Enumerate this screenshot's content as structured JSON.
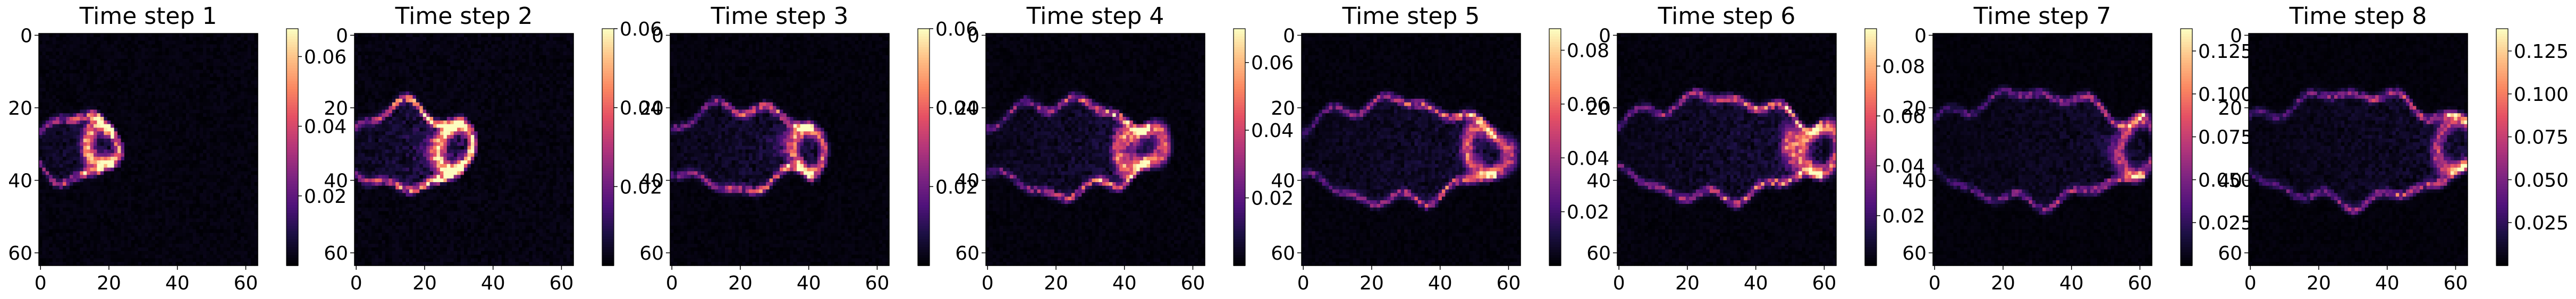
{
  "figure": {
    "colormap": "magma",
    "grid_size": 64
  },
  "chart_data": [
    {
      "type": "heatmap",
      "title": "Time step 1",
      "xlim": [
        0,
        63
      ],
      "ylim": [
        63,
        0
      ],
      "x_ticks": [
        "0",
        "20",
        "40",
        "60"
      ],
      "y_ticks": [
        "0",
        "20",
        "40",
        "60"
      ],
      "colorbar": {
        "min": 0.0,
        "max": 0.068,
        "ticks": [
          "0.02",
          "0.04",
          "0.06"
        ],
        "tick_values": [
          0.02,
          0.04,
          0.06
        ]
      },
      "structure": {
        "front_x": 20,
        "half_width": 8,
        "center_y": 31,
        "peak": 0.066,
        "level": 0.25
      }
    },
    {
      "type": "heatmap",
      "title": "Time step 2",
      "xlim": [
        0,
        63
      ],
      "ylim": [
        63,
        0
      ],
      "x_ticks": [
        "0",
        "20",
        "40",
        "60"
      ],
      "y_ticks": [
        "0",
        "20",
        "40",
        "60"
      ],
      "colorbar": {
        "min": 0.0,
        "max": 0.06,
        "ticks": [
          "0.06",
          "0.04",
          "0.02"
        ],
        "tick_values": [
          0.06,
          0.04,
          0.02
        ]
      },
      "structure": {
        "front_x": 30,
        "half_width": 10,
        "center_y": 31,
        "peak": 0.06,
        "level": 0.3
      }
    },
    {
      "type": "heatmap",
      "title": "Time step 3",
      "xlim": [
        0,
        63
      ],
      "ylim": [
        63,
        0
      ],
      "x_ticks": [
        "0",
        "20",
        "40",
        "60"
      ],
      "y_ticks": [
        "0",
        "20",
        "40",
        "60"
      ],
      "colorbar": {
        "min": 0.0,
        "max": 0.06,
        "ticks": [
          "0.06",
          "0.04",
          "0.02"
        ],
        "tick_values": [
          0.06,
          0.04,
          0.02
        ]
      },
      "structure": {
        "front_x": 40,
        "half_width": 10,
        "center_y": 31,
        "peak": 0.058,
        "level": 0.22
      }
    },
    {
      "type": "heatmap",
      "title": "Time step 4",
      "xlim": [
        0,
        63
      ],
      "ylim": [
        63,
        0
      ],
      "x_ticks": [
        "0",
        "20",
        "40",
        "60"
      ],
      "y_ticks": [
        "0",
        "20",
        "40",
        "60"
      ],
      "colorbar": {
        "min": 0.0,
        "max": 0.07,
        "ticks": [
          "0.06",
          "0.04",
          "0.02"
        ],
        "tick_values": [
          0.06,
          0.04,
          0.02
        ]
      },
      "structure": {
        "front_x": 46,
        "half_width": 11,
        "center_y": 31,
        "peak": 0.068,
        "level": 0.22
      }
    },
    {
      "type": "heatmap",
      "title": "Time step 5",
      "xlim": [
        0,
        63
      ],
      "ylim": [
        63,
        0
      ],
      "x_ticks": [
        "0",
        "20",
        "40",
        "60"
      ],
      "y_ticks": [
        "0",
        "20",
        "40",
        "60"
      ],
      "colorbar": {
        "min": 0.0,
        "max": 0.088,
        "ticks": [
          "0.08",
          "0.06",
          "0.04",
          "0.02"
        ],
        "tick_values": [
          0.08,
          0.06,
          0.04,
          0.02
        ]
      },
      "structure": {
        "front_x": 55,
        "half_width": 12,
        "center_y": 32,
        "peak": 0.086,
        "level": 0.2
      }
    },
    {
      "type": "heatmap",
      "title": "Time step 6",
      "xlim": [
        0,
        63
      ],
      "ylim": [
        63,
        0
      ],
      "x_ticks": [
        "0",
        "20",
        "40",
        "60"
      ],
      "y_ticks": [
        "0",
        "20",
        "40",
        "60"
      ],
      "colorbar": {
        "min": 0.0,
        "max": 0.095,
        "ticks": [
          "0.08",
          "0.06",
          "0.04",
          "0.02"
        ],
        "tick_values": [
          0.08,
          0.06,
          0.04,
          0.02
        ]
      },
      "structure": {
        "front_x": 58,
        "half_width": 12,
        "center_y": 31,
        "peak": 0.092,
        "level": 0.22
      }
    },
    {
      "type": "heatmap",
      "title": "Time step 7",
      "xlim": [
        0,
        63
      ],
      "ylim": [
        63,
        0
      ],
      "x_ticks": [
        "0",
        "20",
        "40",
        "60"
      ],
      "y_ticks": [
        "0",
        "20",
        "40",
        "60"
      ],
      "colorbar": {
        "min": 0.0,
        "max": 0.138,
        "ticks": [
          "0.125",
          "0.100",
          "0.075",
          "0.050",
          "0.025"
        ],
        "tick_values": [
          0.125,
          0.1,
          0.075,
          0.05,
          0.025
        ]
      },
      "structure": {
        "front_x": 60,
        "half_width": 13,
        "center_y": 31,
        "peak": 0.134,
        "level": 0.16
      }
    },
    {
      "type": "heatmap",
      "title": "Time step 8",
      "xlim": [
        0,
        63
      ],
      "ylim": [
        63,
        0
      ],
      "x_ticks": [
        "0",
        "20",
        "40",
        "60"
      ],
      "y_ticks": [
        "0",
        "20",
        "40",
        "60"
      ],
      "colorbar": {
        "min": 0.0,
        "max": 0.138,
        "ticks": [
          "0.125",
          "0.100",
          "0.075",
          "0.050",
          "0.025"
        ],
        "tick_values": [
          0.125,
          0.1,
          0.075,
          0.05,
          0.025
        ]
      },
      "structure": {
        "front_x": 62,
        "half_width": 13,
        "center_y": 31,
        "peak": 0.136,
        "level": 0.17
      }
    }
  ]
}
